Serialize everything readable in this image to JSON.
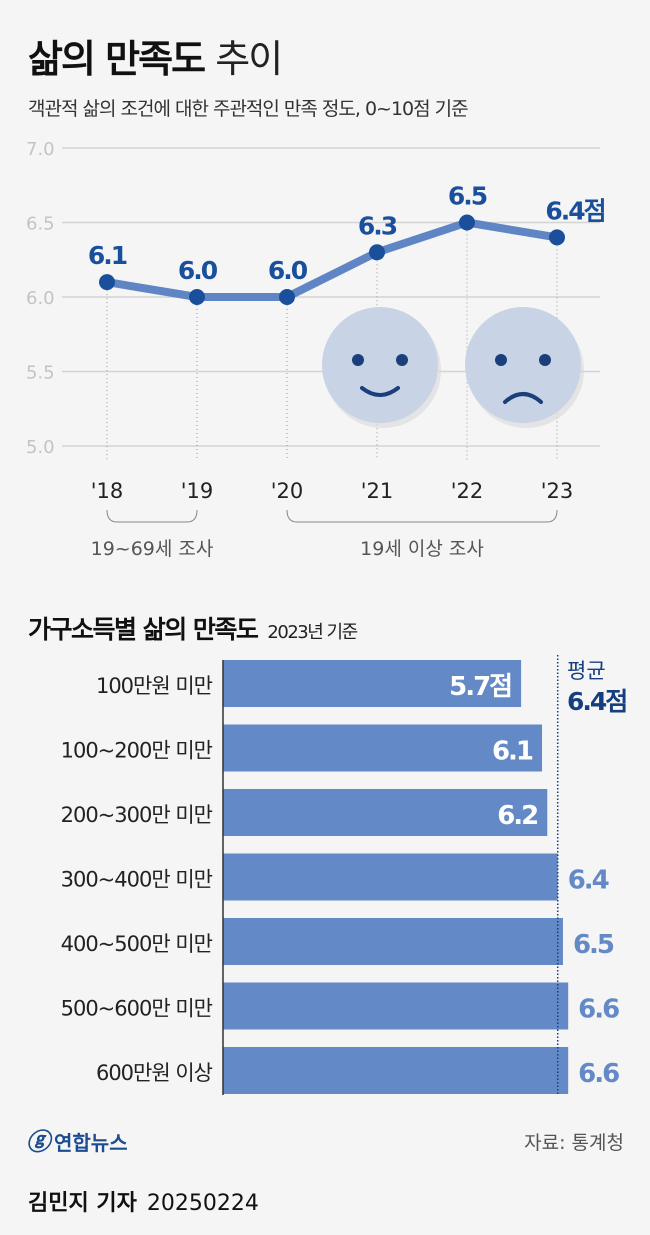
{
  "title_bold": "삶의 만족도",
  "title_light": "추이",
  "subtitle": "객관적 삶의 조건에 대한 주관적인 만족 정도, 0~10점 기준",
  "chart_data": [
    {
      "type": "line",
      "x": [
        "'18",
        "'19",
        "'20",
        "'21",
        "'22",
        "'23"
      ],
      "values": [
        6.1,
        6.0,
        6.0,
        6.3,
        6.5,
        6.4
      ],
      "data_labels": [
        "6.1",
        "6.0",
        "6.0",
        "6.3",
        "6.5",
        "6.4점"
      ],
      "yticks": [
        "7.0",
        "6.5",
        "6.0",
        "5.5",
        "5.0"
      ],
      "ylim": [
        5.0,
        7.0
      ],
      "grid": true,
      "groups": [
        {
          "label": "19~69세 조사",
          "range": [
            "'18",
            "'19"
          ]
        },
        {
          "label": "19세 이상 조사",
          "range": [
            "'20",
            "'23"
          ]
        }
      ],
      "colors": {
        "line": "#5f85c4",
        "point": "#1a4f9c",
        "label": "#1a4f9c",
        "face": "#c8d3e6"
      }
    },
    {
      "type": "bar",
      "title": "가구소득별 삶의 만족도",
      "subtitle": "2023년 기준",
      "categories": [
        "100만원 미만",
        "100~200만 미만",
        "200~300만 미만",
        "300~400만 미만",
        "400~500만 미만",
        "500~600만 미만",
        "600만원 이상"
      ],
      "values": [
        5.7,
        6.1,
        6.2,
        6.4,
        6.5,
        6.6,
        6.6
      ],
      "data_labels": [
        "5.7점",
        "6.1",
        "6.2",
        "6.4",
        "6.5",
        "6.6",
        "6.6"
      ],
      "average": {
        "label": "평균",
        "value": 6.4,
        "value_label": "6.4점"
      },
      "colors": {
        "bar": "#6389c6",
        "avg": "#163f80"
      }
    }
  ],
  "logo": "연합뉴스",
  "source": "자료: 통계청",
  "byline": {
    "name": "김민지 기자",
    "date": "20250224"
  }
}
